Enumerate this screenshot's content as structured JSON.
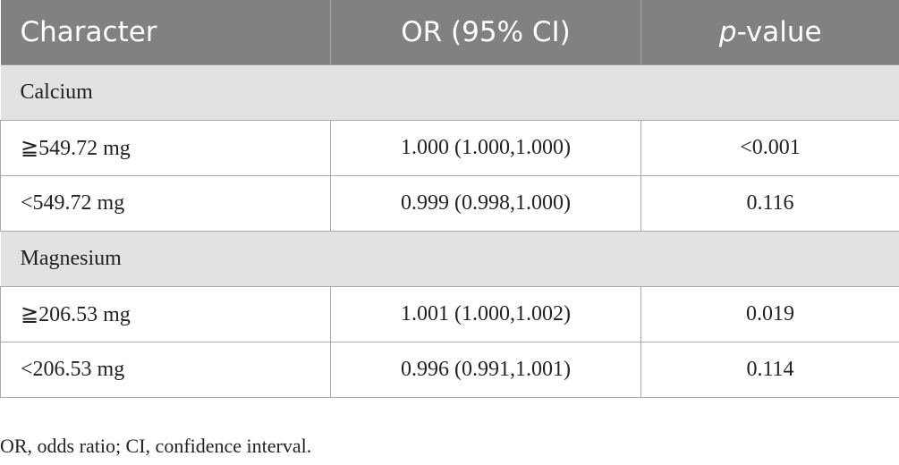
{
  "table": {
    "headers": {
      "character": "Character",
      "or_ci": "OR (95% CI)",
      "p_italic": "p",
      "p_rest": "-value"
    },
    "groups": [
      {
        "label": "Calcium",
        "rows": [
          {
            "character": "≧549.72 mg",
            "or_ci": "1.000 (1.000,1.000)",
            "p_value": "<0.001"
          },
          {
            "character": "<549.72 mg",
            "or_ci": "0.999 (0.998,1.000)",
            "p_value": "0.116"
          }
        ]
      },
      {
        "label": "Magnesium",
        "rows": [
          {
            "character": "≧206.53 mg",
            "or_ci": "1.001 (1.000,1.002)",
            "p_value": "0.019"
          },
          {
            "character": "<206.53 mg",
            "or_ci": "0.996 (0.991,1.001)",
            "p_value": "0.114"
          }
        ]
      }
    ]
  },
  "footnote": "OR, odds ratio; CI, confidence interval."
}
